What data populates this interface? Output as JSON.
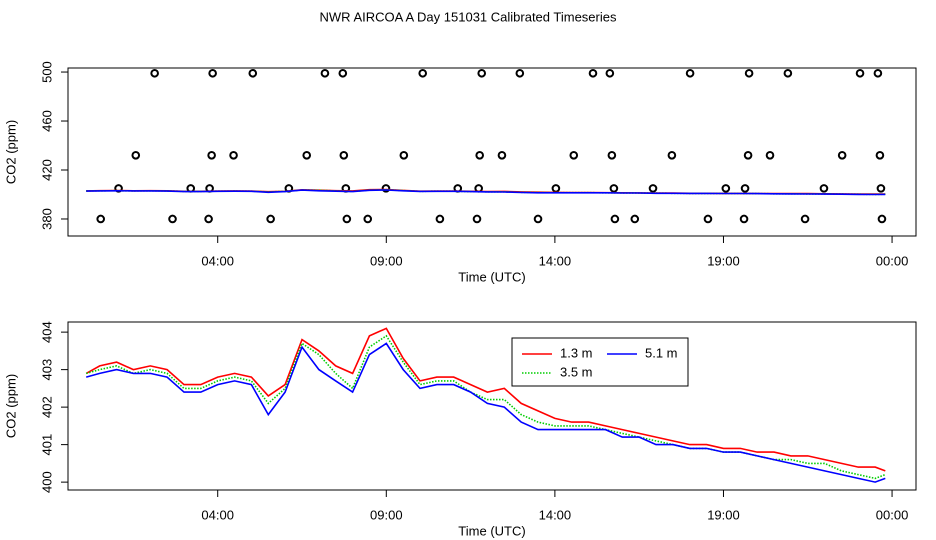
{
  "chart_data": [
    {
      "type": "scatter",
      "title": "NWR AIRCOA A  Day 151031  Calibrated Timeseries",
      "x_label": "Time (UTC)",
      "y_label": "CO2 (ppm)",
      "xlim": [
        -0.44,
        24.71
      ],
      "xticks": [
        {
          "value": 4,
          "label": "04:00"
        },
        {
          "value": 9,
          "label": "09:00"
        },
        {
          "value": 14,
          "label": "14:00"
        },
        {
          "value": 19,
          "label": "19:00"
        },
        {
          "value": 24,
          "label": "00:00"
        }
      ],
      "ylim": [
        366.1,
        503.3
      ],
      "yticks": [
        380,
        420,
        460,
        500
      ],
      "color": "#000000",
      "x": [
        2.13,
        3.85,
        5.04,
        7.18,
        7.71,
        10.08,
        11.83,
        12.96,
        15.13,
        15.63,
        18.01,
        19.76,
        20.91,
        23.05,
        23.58,
        1.57,
        3.82,
        4.47,
        6.64,
        7.74,
        9.52,
        11.77,
        12.43,
        14.56,
        15.69,
        17.47,
        19.73,
        20.38,
        22.52,
        23.64,
        1.06,
        3.2,
        3.76,
        6.11,
        7.8,
        8.99,
        11.12,
        11.74,
        14.03,
        15.75,
        16.91,
        19.07,
        19.64,
        21.98,
        23.67,
        0.53,
        2.66,
        3.73,
        5.57,
        7.83,
        8.45,
        10.59,
        11.69,
        13.5,
        15.78,
        16.37,
        18.54,
        19.61,
        21.42,
        23.7
      ],
      "values": [
        499,
        499,
        499,
        499,
        499,
        499,
        499,
        499,
        499,
        499,
        499,
        499,
        499,
        499,
        499,
        432,
        432,
        432,
        432,
        432,
        432,
        432,
        432,
        432,
        432,
        432,
        432,
        432,
        432,
        432,
        405,
        405,
        405,
        405,
        405,
        405,
        405,
        405,
        405,
        405,
        405,
        405,
        405,
        405,
        405,
        380,
        380,
        380,
        380,
        380,
        380,
        380,
        380,
        380,
        380,
        380,
        380,
        380,
        380,
        380
      ]
    },
    {
      "type": "line",
      "x_label": "Time (UTC)",
      "y_label": "CO2 (ppm)",
      "xlim": [
        -0.44,
        24.71
      ],
      "xticks": [
        {
          "value": 4,
          "label": "04:00"
        },
        {
          "value": 9,
          "label": "09:00"
        },
        {
          "value": 14,
          "label": "14:00"
        },
        {
          "value": 19,
          "label": "19:00"
        },
        {
          "value": 24,
          "label": "00:00"
        }
      ],
      "ylim": [
        399.79,
        404.27
      ],
      "yticks": [
        400,
        401,
        402,
        403,
        404
      ],
      "legend": "top",
      "x": [
        0.1,
        0.5,
        1,
        1.5,
        2,
        2.5,
        3,
        3.5,
        4,
        4.5,
        5,
        5.5,
        6,
        6.5,
        7,
        7.5,
        8,
        8.5,
        9,
        9.5,
        10,
        10.5,
        11,
        11.5,
        12,
        12.5,
        13,
        13.5,
        14,
        14.5,
        15,
        15.5,
        16,
        16.5,
        17,
        17.5,
        18,
        18.5,
        19,
        19.5,
        20,
        20.5,
        21,
        21.5,
        22,
        22.5,
        23,
        23.5,
        23.8
      ],
      "series": [
        {
          "name": "1.3 m",
          "color": "#ff0000",
          "dash": "solid",
          "values": [
            402.9,
            403.1,
            403.2,
            403.0,
            403.1,
            403.0,
            402.6,
            402.6,
            402.8,
            402.9,
            402.8,
            402.3,
            402.6,
            403.8,
            403.5,
            403.1,
            402.9,
            403.9,
            404.1,
            403.3,
            402.7,
            402.8,
            402.8,
            402.6,
            402.4,
            402.5,
            402.1,
            401.9,
            401.7,
            401.6,
            401.6,
            401.5,
            401.4,
            401.3,
            401.2,
            401.1,
            401.0,
            401.0,
            400.9,
            400.9,
            400.8,
            400.8,
            400.7,
            400.7,
            400.6,
            400.5,
            400.4,
            400.4,
            400.3
          ]
        },
        {
          "name": "3.5 m",
          "color": "#00cd00",
          "dash": "dotted",
          "values": [
            402.9,
            403.0,
            403.1,
            402.9,
            403.0,
            402.9,
            402.5,
            402.5,
            402.7,
            402.8,
            402.7,
            402.1,
            402.5,
            403.7,
            403.4,
            402.9,
            402.5,
            403.6,
            403.9,
            403.2,
            402.6,
            402.7,
            402.7,
            402.4,
            402.2,
            402.2,
            401.8,
            401.6,
            401.5,
            401.5,
            401.5,
            401.4,
            401.3,
            401.2,
            401.1,
            401.0,
            400.9,
            400.9,
            400.8,
            400.8,
            400.7,
            400.6,
            400.6,
            400.5,
            400.5,
            400.3,
            400.2,
            400.1,
            400.2
          ]
        },
        {
          "name": "5.1 m",
          "color": "#0000ff",
          "dash": "solid",
          "values": [
            402.8,
            402.9,
            403.0,
            402.9,
            402.9,
            402.8,
            402.4,
            402.4,
            402.6,
            402.7,
            402.6,
            401.8,
            402.4,
            403.6,
            403.0,
            402.7,
            402.4,
            403.4,
            403.7,
            403.0,
            402.5,
            402.6,
            402.6,
            402.4,
            402.1,
            402.0,
            401.6,
            401.4,
            401.4,
            401.4,
            401.4,
            401.4,
            401.2,
            401.2,
            401.0,
            401.0,
            400.9,
            400.9,
            400.8,
            400.8,
            400.7,
            400.6,
            400.5,
            400.4,
            400.3,
            400.2,
            400.1,
            400.0,
            400.1
          ]
        }
      ]
    }
  ]
}
